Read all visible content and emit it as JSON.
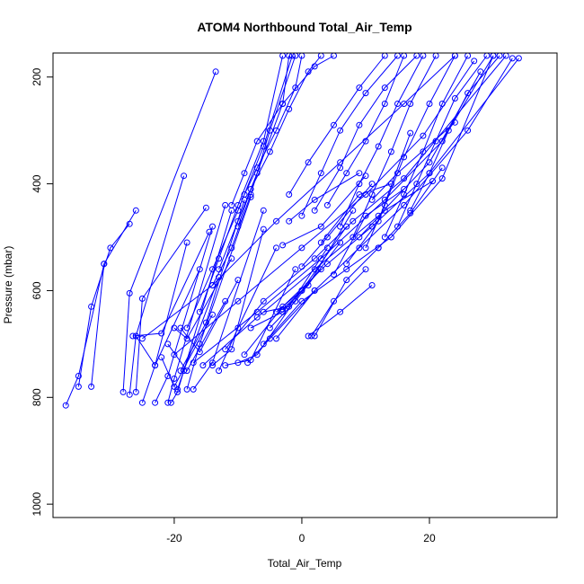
{
  "chart_data": {
    "type": "line",
    "title": "ATOM4 Northbound Total_Air_Temp",
    "xlabel": "Total_Air_Temp",
    "ylabel": "Pressure (mbar)",
    "xlim": [
      -39,
      40
    ],
    "ylim": [
      1025,
      155
    ],
    "y_axis_inverted": true,
    "x_ticks": [
      -20,
      0,
      20
    ],
    "x_tick_labels": [
      "-20",
      "0",
      "20"
    ],
    "y_ticks": [
      200,
      400,
      600,
      800,
      1000
    ],
    "y_tick_labels": [
      "200",
      "400",
      "600",
      "800",
      "1000"
    ],
    "grid": false,
    "legend": "none",
    "line_color": "#0000ff",
    "marker": "open-circle",
    "series": [
      {
        "x": [
          -37,
          -35,
          -31
        ],
        "y": [
          815,
          760,
          550
        ]
      },
      {
        "x": [
          -35,
          -33,
          -30,
          -27
        ],
        "y": [
          780,
          630,
          520,
          475
        ]
      },
      {
        "x": [
          -33,
          -31,
          -26
        ],
        "y": [
          780,
          550,
          450
        ]
      },
      {
        "x": [
          -28,
          -27,
          -13.5
        ],
        "y": [
          790,
          605,
          190
        ]
      },
      {
        "x": [
          -27,
          -26,
          -18.5
        ],
        "y": [
          795,
          685,
          385
        ]
      },
      {
        "x": [
          -26,
          -25,
          -15
        ],
        "y": [
          790,
          615,
          445
        ]
      },
      {
        "x": [
          -25,
          -23,
          -18
        ],
        "y": [
          810,
          740,
          510
        ]
      },
      {
        "x": [
          -23,
          -21,
          -14
        ],
        "y": [
          810,
          760,
          480
        ]
      },
      {
        "x": [
          -21,
          -20,
          -12
        ],
        "y": [
          810,
          765,
          440
        ]
      },
      {
        "x": [
          -20.5,
          -19.5,
          -11
        ],
        "y": [
          810,
          790,
          450
        ]
      },
      {
        "x": [
          -19.5,
          -18.5,
          -13
        ],
        "y": [
          785,
          750,
          575
        ]
      },
      {
        "x": [
          -18,
          -16,
          -8
        ],
        "y": [
          785,
          700,
          425
        ]
      },
      {
        "x": [
          -17,
          -14,
          -6
        ],
        "y": [
          785,
          735,
          450
        ]
      },
      {
        "x": [
          -19,
          -15,
          -9
        ],
        "y": [
          750,
          660,
          430
        ]
      },
      {
        "x": [
          -26.5,
          -22,
          -14.5
        ],
        "y": [
          685,
          680,
          490
        ]
      },
      {
        "x": [
          -26,
          -23,
          -16
        ],
        "y": [
          685,
          740,
          560
        ]
      },
      {
        "x": [
          -20,
          -18,
          -11
        ],
        "y": [
          670,
          690,
          540
        ]
      },
      {
        "x": [
          -19,
          -16,
          -10
        ],
        "y": [
          670,
          715,
          580
        ]
      },
      {
        "x": [
          -21,
          -18,
          -12
        ],
        "y": [
          700,
          750,
          620
        ]
      },
      {
        "x": [
          -22,
          -20,
          -14
        ],
        "y": [
          725,
          780,
          645
        ]
      },
      {
        "x": [
          -14,
          -11,
          -6
        ],
        "y": [
          740,
          710,
          485
        ]
      },
      {
        "x": [
          -13,
          -10,
          -4
        ],
        "y": [
          750,
          670,
          520
        ]
      },
      {
        "x": [
          -12,
          -8,
          -1
        ],
        "y": [
          740,
          730,
          560
        ]
      },
      {
        "x": [
          -10,
          -7,
          0
        ],
        "y": [
          735,
          720,
          600
        ]
      },
      {
        "x": [
          -8.5,
          -5,
          2
        ],
        "y": [
          735,
          690,
          600
        ]
      },
      {
        "x": [
          -8,
          -3,
          3
        ],
        "y": [
          670,
          640,
          560
        ]
      },
      {
        "x": [
          -6,
          -2,
          4
        ],
        "y": [
          640,
          630,
          520
        ]
      },
      {
        "x": [
          -5,
          -1,
          6
        ],
        "y": [
          670,
          620,
          510
        ]
      },
      {
        "x": [
          -4,
          0,
          7
        ],
        "y": [
          640,
          600,
          480
        ]
      },
      {
        "x": [
          -3,
          1,
          8
        ],
        "y": [
          635,
          590,
          450
        ]
      },
      {
        "x": [
          1,
          6,
          11
        ],
        "y": [
          685,
          640,
          590
        ]
      },
      {
        "x": [
          1.5,
          5,
          10
        ],
        "y": [
          685,
          620,
          560
        ]
      },
      {
        "x": [
          2,
          7,
          12
        ],
        "y": [
          685,
          580,
          520
        ]
      },
      {
        "x": [
          -2,
          2,
          9
        ],
        "y": [
          470,
          430,
          380
        ]
      },
      {
        "x": [
          -3,
          3,
          10
        ],
        "y": [
          515,
          480,
          385
        ]
      },
      {
        "x": [
          0,
          4,
          11
        ],
        "y": [
          555,
          500,
          400
        ]
      },
      {
        "x": [
          3,
          9,
          14
        ],
        "y": [
          510,
          420,
          400
        ]
      },
      {
        "x": [
          5,
          10,
          16
        ],
        "y": [
          570,
          460,
          410
        ]
      },
      {
        "x": [
          7,
          12,
          17
        ],
        "y": [
          550,
          470,
          305
        ]
      },
      {
        "x": [
          9,
          13,
          20.5
        ],
        "y": [
          500,
          450,
          395
        ]
      },
      {
        "x": [
          11,
          15,
          24
        ],
        "y": [
          430,
          380,
          285
        ]
      },
      {
        "x": [
          12,
          17,
          22
        ],
        "y": [
          520,
          455,
          370
        ]
      },
      {
        "x": [
          -15.5,
          -7,
          2,
          12,
          20,
          28
        ],
        "y": [
          740,
          650,
          560,
          460,
          360,
          190
        ]
      },
      {
        "x": [
          -17,
          -7,
          3,
          13,
          22,
          30
        ],
        "y": [
          735,
          640,
          540,
          430,
          320,
          160
        ]
      },
      {
        "x": [
          -20,
          -10,
          0,
          10,
          19,
          27
        ],
        "y": [
          720,
          620,
          520,
          420,
          310,
          170
        ]
      },
      {
        "x": [
          -25,
          -14,
          -4,
          6,
          16,
          24
        ],
        "y": [
          690,
          590,
          470,
          360,
          250,
          160
        ]
      },
      {
        "x": [
          -12,
          -6,
          2,
          8,
          16,
          32
        ],
        "y": [
          710,
          620,
          540,
          470,
          390,
          160
        ]
      },
      {
        "x": [
          -9,
          -3,
          4,
          11,
          20,
          34
        ],
        "y": [
          720,
          630,
          550,
          480,
          380,
          165
        ]
      },
      {
        "x": [
          -6,
          0,
          7,
          14,
          22,
          30
        ],
        "y": [
          700,
          620,
          560,
          500,
          390,
          160
        ]
      },
      {
        "x": [
          -4,
          2,
          9,
          16,
          26,
          33
        ],
        "y": [
          690,
          600,
          520,
          440,
          300,
          165
        ]
      },
      {
        "x": [
          -11,
          -9,
          -7,
          -3,
          2,
          5
        ],
        "y": [
          440,
          380,
          320,
          250,
          180,
          160
        ]
      },
      {
        "x": [
          -10,
          -8,
          -5,
          -2,
          1,
          3
        ],
        "y": [
          480,
          410,
          340,
          260,
          190,
          160
        ]
      },
      {
        "x": [
          -9,
          -7,
          -4,
          -1,
          0
        ],
        "y": [
          420,
          370,
          300,
          220,
          160
        ]
      },
      {
        "x": [
          -13,
          -10,
          -7,
          -3,
          -2
        ],
        "y": [
          560,
          470,
          380,
          250,
          160
        ]
      },
      {
        "x": [
          -14,
          -11,
          -8,
          -5,
          -1
        ],
        "y": [
          590,
          520,
          420,
          300,
          160
        ]
      },
      {
        "x": [
          -16,
          -13,
          -10,
          -6,
          -3
        ],
        "y": [
          640,
          540,
          440,
          320,
          160
        ]
      },
      {
        "x": [
          -18,
          -14,
          -10,
          -6,
          -1.5
        ],
        "y": [
          670,
          560,
          450,
          330,
          160
        ]
      },
      {
        "x": [
          4,
          7,
          10,
          13,
          16
        ],
        "y": [
          440,
          380,
          320,
          250,
          160
        ]
      },
      {
        "x": [
          6,
          9,
          12,
          15,
          19
        ],
        "y": [
          480,
          400,
          330,
          250,
          160
        ]
      },
      {
        "x": [
          8,
          11,
          14,
          17,
          21
        ],
        "y": [
          500,
          420,
          340,
          250,
          160
        ]
      },
      {
        "x": [
          10,
          13,
          16,
          20,
          24
        ],
        "y": [
          520,
          440,
          350,
          250,
          160
        ]
      },
      {
        "x": [
          13,
          16,
          19,
          22,
          26
        ],
        "y": [
          500,
          420,
          340,
          250,
          160
        ]
      },
      {
        "x": [
          15,
          18,
          21,
          24,
          29
        ],
        "y": [
          480,
          400,
          320,
          240,
          160
        ]
      },
      {
        "x": [
          17,
          20,
          23,
          26,
          31
        ],
        "y": [
          450,
          380,
          300,
          230,
          160
        ]
      },
      {
        "x": [
          -2,
          1,
          5,
          9,
          13
        ],
        "y": [
          420,
          360,
          290,
          220,
          160
        ]
      },
      {
        "x": [
          0,
          3,
          6,
          10,
          15
        ],
        "y": [
          460,
          380,
          300,
          230,
          160
        ]
      },
      {
        "x": [
          2,
          6,
          9,
          13,
          18
        ],
        "y": [
          450,
          370,
          290,
          220,
          160
        ]
      }
    ]
  }
}
